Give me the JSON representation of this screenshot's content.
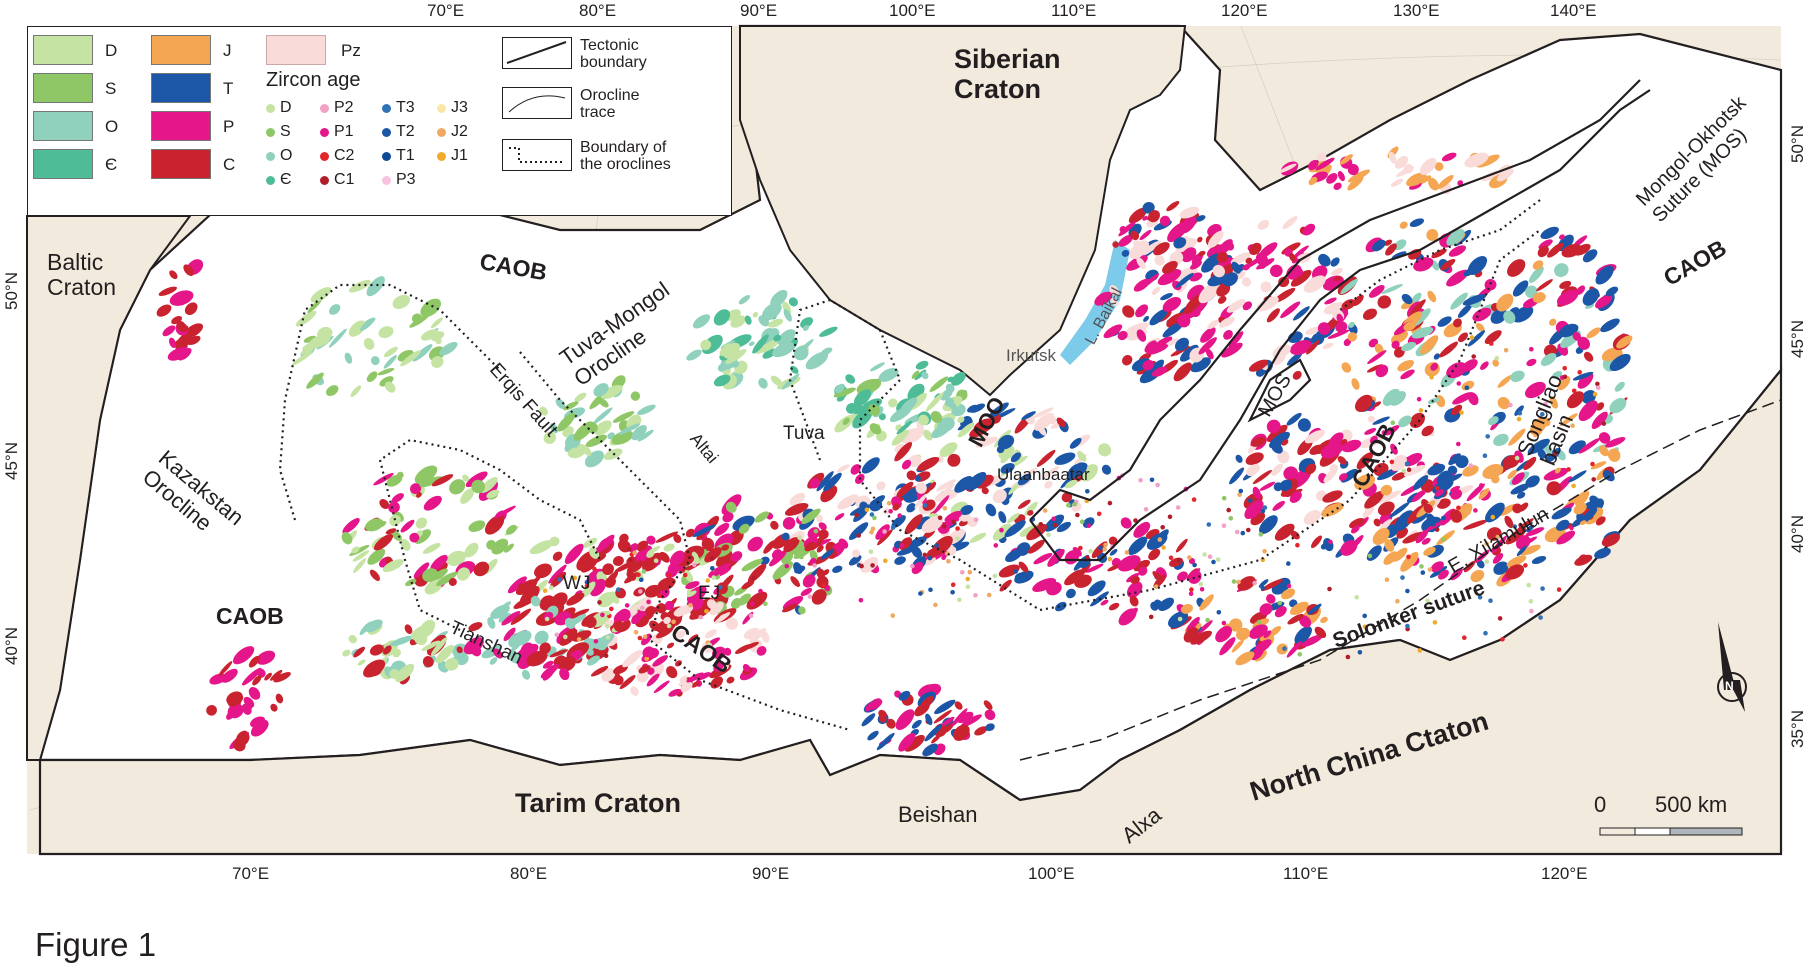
{
  "figure_caption": "Figure 1",
  "colors": {
    "craton": "#f2ebdd",
    "caob": "#ffffff",
    "D": "#c5e3a2",
    "S": "#8fc767",
    "O": "#8fd1bd",
    "Cm": "#4ebc96",
    "J": "#f5a652",
    "T": "#1c56a6",
    "P": "#e5158a",
    "C": "#c9232f",
    "Pz": "#f9dbd9",
    "J3": "#fbe7a5",
    "J2": "#f0a962",
    "J1": "#eeac2a",
    "T3": "#2f72b8",
    "T2": "#1c56a6",
    "T1": "#104a96",
    "P2": "#f2a1c7",
    "P1": "#e5158a",
    "P3": "#f7c3de",
    "C2": "#e5252c",
    "C1": "#b01e2c",
    "lake": "#7ccbea"
  },
  "legend": {
    "units": [
      {
        "key": "D",
        "label": "D"
      },
      {
        "key": "S",
        "label": "S"
      },
      {
        "key": "O",
        "label": "O"
      },
      {
        "key": "Cm",
        "label": "Є"
      },
      {
        "key": "J",
        "label": "J"
      },
      {
        "key": "T",
        "label": "T"
      },
      {
        "key": "P",
        "label": "P"
      },
      {
        "key": "C",
        "label": "C"
      }
    ],
    "pz_label": "Pz",
    "zircon_title": "Zircon age",
    "zircon": [
      {
        "key": "D",
        "label": "D",
        "color": "#c5e3a2"
      },
      {
        "key": "S",
        "label": "S",
        "color": "#8fc767"
      },
      {
        "key": "O",
        "label": "O",
        "color": "#8fd1bd"
      },
      {
        "key": "Cm",
        "label": "Є",
        "color": "#4ebc96"
      },
      {
        "key": "P2",
        "label": "P2",
        "color": "#f2a1c7"
      },
      {
        "key": "P1",
        "label": "P1",
        "color": "#e5158a"
      },
      {
        "key": "C2",
        "label": "C2",
        "color": "#e5252c"
      },
      {
        "key": "C1",
        "label": "C1",
        "color": "#b01e2c"
      },
      {
        "key": "T3",
        "label": "T3",
        "color": "#2f72b8"
      },
      {
        "key": "T2",
        "label": "T2",
        "color": "#1c56a6"
      },
      {
        "key": "T1",
        "label": "T1",
        "color": "#104a96"
      },
      {
        "key": "P3",
        "label": "P3",
        "color": "#f7c3de"
      },
      {
        "key": "J3",
        "label": "J3",
        "color": "#fbe7a5"
      },
      {
        "key": "J2",
        "label": "J2",
        "color": "#f0a962"
      },
      {
        "key": "J1",
        "label": "J1",
        "color": "#eeac2a"
      }
    ],
    "symbols": {
      "tectonic": "Tectonic\nboundary",
      "orocline": "Orocline\ntrace",
      "oroclines_boundary": "Boundary of\nthe oroclines"
    }
  },
  "top_longitudes": [
    "70°E",
    "80°E",
    "90°E",
    "100°E",
    "110°E",
    "120°E",
    "130°E",
    "140°E"
  ],
  "bottom_longitudes": [
    "70°E",
    "80°E",
    "90°E",
    "100°E",
    "110°E",
    "120°E"
  ],
  "left_latitudes": [
    "50°N",
    "45°N",
    "40°N"
  ],
  "right_latitudes": [
    "50°N",
    "45°N",
    "40°N",
    "35°N"
  ],
  "labels": {
    "siberian_craton": "Siberian\nCraton",
    "baltic_craton": "Baltic\nCraton",
    "tarim_craton": "Tarim Craton",
    "north_china_craton": "North China Ctaton",
    "caob": "CAOB",
    "tuva_mongol": "Tuva-Mongol\nOrocline",
    "kazakhstan": "Kazakstan\nOrocline",
    "erqis": "Erqis Fault",
    "altai": "Altai",
    "tuva": "Tuva",
    "moo": "MOO",
    "mos": "MOS",
    "irkutsk": "Irkutsk",
    "baikal": "L. Baikal",
    "ulaanbaatar": "Ulaanbaatar",
    "wj": "WJ",
    "ej": "EJ",
    "tianshan": "Tianshan",
    "beishan": "Beishan",
    "alxa": "Alxa",
    "songliao": "Songliao\nbasin",
    "e_xilamulun": "E. Xilamulun",
    "solonker": "Solonker suture",
    "mos_full": "Mongol-Okhotsk\nSuture (MOS)"
  },
  "scale_bar": {
    "zero": "0",
    "label": "500 km"
  },
  "north_arrow": "N"
}
